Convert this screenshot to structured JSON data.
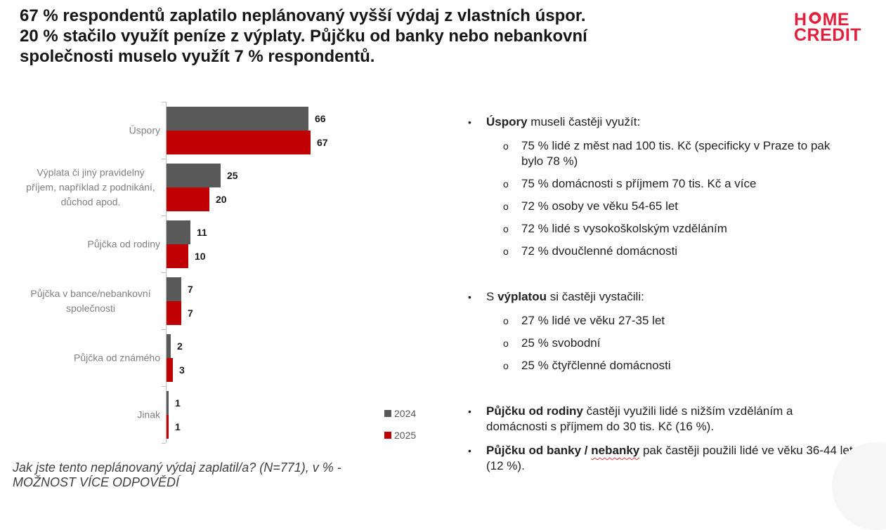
{
  "slide": {
    "title_lines": [
      "67 % respondentů zaplatilo neplánovaný vyšší výdaj z vlastních úspor.",
      "20 % stačilo využít peníze z výplaty. Půjčku od banky nebo nebankovní",
      "společnosti muselo využít 7 % respondentů."
    ],
    "logo": {
      "line1": "HOME",
      "line2": "CREDIT",
      "color": "#e0203c"
    },
    "footnote_lines": [
      "Jak jste tento neplánovaný výdaj zaplatil/a? (N=771), v % -",
      "MOŽNOST VÍCE ODPOVĚDÍ"
    ]
  },
  "chart_data": {
    "type": "bar",
    "orientation": "horizontal",
    "categories": [
      "Úspory",
      "Výplata či jiný pravidelný příjem, například z podnikání, důchod apod.",
      "Půjčka od rodiny",
      "Půjčka v bance/nebankovní společnosti",
      "Půjčka od známého",
      "Jinak"
    ],
    "series": [
      {
        "name": "2024",
        "color": "#595959",
        "values": [
          66,
          25,
          11,
          7,
          2,
          1
        ]
      },
      {
        "name": "2025",
        "color": "#c00000",
        "values": [
          67,
          20,
          10,
          7,
          3,
          1
        ]
      }
    ],
    "xlim": [
      0,
      70
    ],
    "data_labels": true,
    "grid": false,
    "legend_position": "bottom-right",
    "axis_color": "#bfbfbf",
    "category_label_color": "#808080"
  },
  "insights": {
    "bullet_marker": "•",
    "sub_marker": "o",
    "groups": [
      {
        "segments": [
          {
            "t": "Úspory",
            "b": true
          },
          {
            "t": " museli častěji využít:"
          }
        ],
        "sub": [
          "75 % lidé z měst nad 100 tis. Kč (specificky v Praze to pak bylo 78 %)",
          "75 % domácnosti s příjmem 70 tis. Kč a více",
          "72 % osoby ve věku 54-65 let",
          "72 % lidé s vysokoškolským vzděláním",
          "72 % dvoučlenné domácnosti"
        ]
      },
      {
        "segments": [
          {
            "t": "S "
          },
          {
            "t": "výplatou",
            "b": true
          },
          {
            "t": " si častěji vystačili:"
          }
        ],
        "sub": [
          "27 % lidé ve věku 27-35 let",
          "25 % svobodní",
          "25 % čtyřčlenné domácnosti"
        ]
      },
      {
        "segments": [
          {
            "t": "Půjčku od rodiny",
            "b": true
          },
          {
            "t": " častěji využili lidé s nižším vzděláním a domácnosti s příjmem do 30 tis. Kč (16 %)."
          }
        ],
        "sub": []
      },
      {
        "segments": [
          {
            "t": "Půjčku od banky / ",
            "b": true
          },
          {
            "t": "nebanky",
            "b": true,
            "wavy": true
          },
          {
            "t": " pak častěji použili lidé ve věku 36-44 let (12 %)."
          }
        ],
        "sub": []
      }
    ]
  }
}
